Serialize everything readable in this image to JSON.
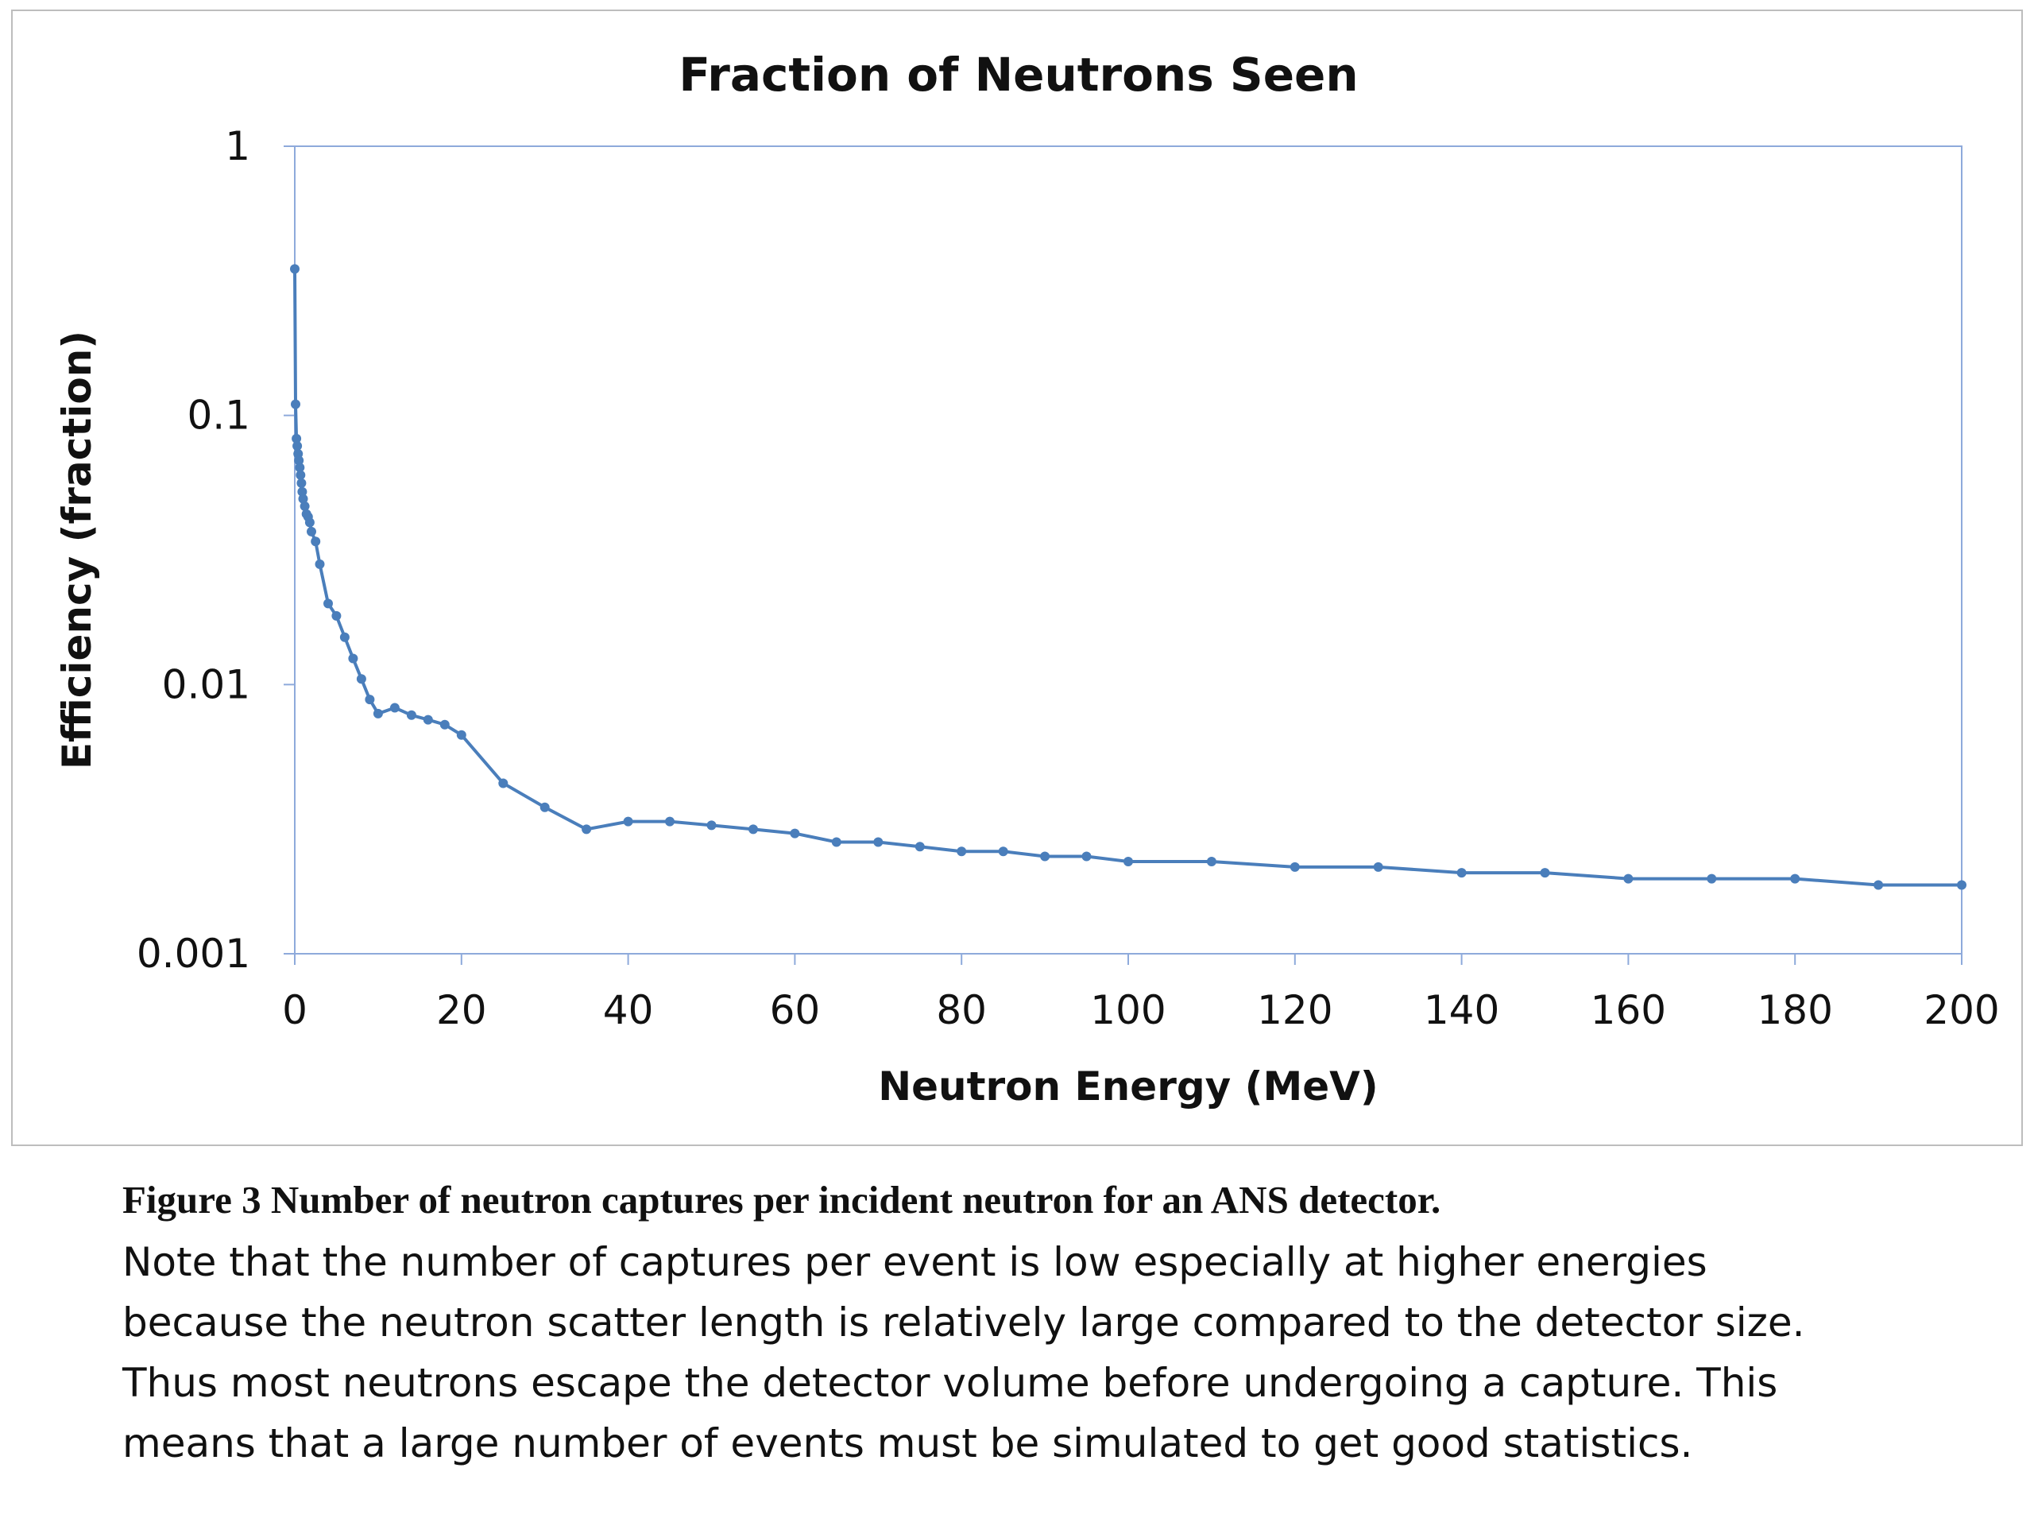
{
  "chart_data": {
    "type": "line",
    "title": "Fraction of Neutrons Seen",
    "xlabel": "Neutron Energy (MeV)",
    "ylabel": "Efficiency  (fraction)",
    "xlim": [
      0,
      200
    ],
    "ylim": [
      0.001,
      1
    ],
    "yscale": "log",
    "xticks": [
      "0",
      "20",
      "40",
      "60",
      "80",
      "100",
      "120",
      "140",
      "160",
      "180",
      "200"
    ],
    "yticks": [
      "0.001",
      "0.01",
      "0.1",
      "1"
    ],
    "grid": false,
    "legend": "none",
    "line_color": "#4a7ebb",
    "series": [
      {
        "points": [
          [
            0.0,
            0.35
          ],
          [
            0.1,
            0.11
          ],
          [
            0.2,
            0.082
          ],
          [
            0.3,
            0.077
          ],
          [
            0.4,
            0.072
          ],
          [
            0.5,
            0.068
          ],
          [
            0.6,
            0.064
          ],
          [
            0.7,
            0.06
          ],
          [
            0.8,
            0.056
          ],
          [
            0.9,
            0.052
          ],
          [
            1.0,
            0.049
          ],
          [
            1.2,
            0.046
          ],
          [
            1.4,
            0.043
          ],
          [
            1.6,
            0.042
          ],
          [
            1.8,
            0.04
          ],
          [
            2.0,
            0.037
          ],
          [
            2.5,
            0.034
          ],
          [
            3.0,
            0.028
          ],
          [
            4.0,
            0.02
          ],
          [
            5.0,
            0.018
          ],
          [
            6.0,
            0.015
          ],
          [
            7.0,
            0.0125
          ],
          [
            8.0,
            0.0105
          ],
          [
            9.0,
            0.0088
          ],
          [
            10.0,
            0.0078
          ],
          [
            12.0,
            0.0082
          ],
          [
            14.0,
            0.0077
          ],
          [
            16.0,
            0.0074
          ],
          [
            18.0,
            0.0071
          ],
          [
            20.0,
            0.0065
          ],
          [
            25.0,
            0.0043
          ],
          [
            30.0,
            0.0035
          ],
          [
            35.0,
            0.0029
          ],
          [
            40.0,
            0.0031
          ],
          [
            45.0,
            0.0031
          ],
          [
            50.0,
            0.003
          ],
          [
            55.0,
            0.0029
          ],
          [
            60.0,
            0.0028
          ],
          [
            65.0,
            0.0026
          ],
          [
            70.0,
            0.0026
          ],
          [
            75.0,
            0.0025
          ],
          [
            80.0,
            0.0024
          ],
          [
            85.0,
            0.0024
          ],
          [
            90.0,
            0.0023
          ],
          [
            95.0,
            0.0023
          ],
          [
            100.0,
            0.0022
          ],
          [
            110.0,
            0.0022
          ],
          [
            120.0,
            0.0021
          ],
          [
            130.0,
            0.0021
          ],
          [
            140.0,
            0.002
          ],
          [
            150.0,
            0.002
          ],
          [
            160.0,
            0.0019
          ],
          [
            170.0,
            0.0019
          ],
          [
            180.0,
            0.0019
          ],
          [
            190.0,
            0.0018
          ],
          [
            200.0,
            0.0018
          ]
        ]
      }
    ]
  },
  "caption": {
    "heading": "Figure 3 Number of neutron captures per incident neutron for an ANS detector.",
    "lines": [
      "Note that the number of captures per event is low especially at higher energies",
      "because the neutron scatter length is relatively large compared to the detector size.",
      "Thus most neutrons escape the detector volume before undergoing a capture. This",
      "means that a large number of events must be simulated to get good statistics."
    ]
  }
}
